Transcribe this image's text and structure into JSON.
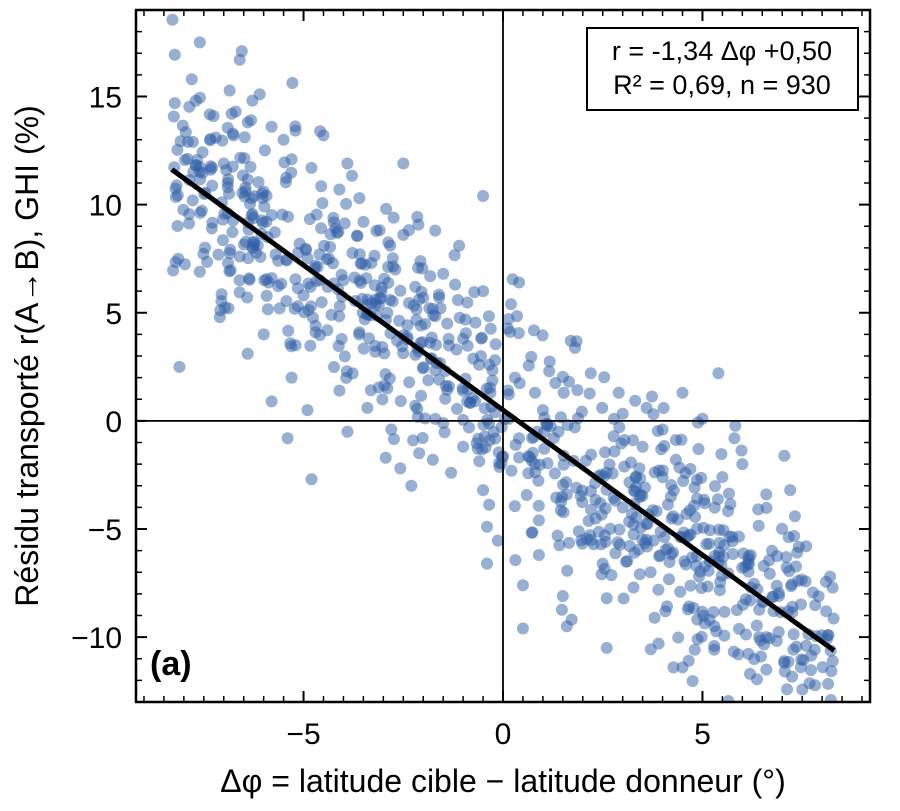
{
  "chart_data": {
    "type": "scatter",
    "panel_label": "(a)",
    "xlabel": "Δφ = latitude cible − latitude donneur (°)",
    "ylabel": "Résidu transporté r(A→B), GHI (%)",
    "xlim": [
      -9.2,
      9.2
    ],
    "ylim": [
      -13,
      19
    ],
    "xticks": [
      -5,
      0,
      5
    ],
    "xtick_labels": [
      "−5",
      "0",
      "5"
    ],
    "yticks": [
      -10,
      -5,
      0,
      5,
      10,
      15
    ],
    "ytick_labels": [
      "−10",
      "−5",
      "0",
      "5",
      "10",
      "15"
    ],
    "grid": false,
    "reference_lines": {
      "x": 0,
      "y": 0
    },
    "annotation": {
      "line1": "r = -1,34 Δφ +0,50",
      "line2": "R² = 0,69, n = 930",
      "placement": "top-right"
    },
    "fit": {
      "slope": -1.34,
      "intercept": 0.5,
      "x_range": [
        -8.3,
        8.3
      ]
    },
    "point_color": "#2f5fa8",
    "line_color": "#000000",
    "n": 930,
    "noise_sd": 2.55,
    "points_shown": [
      [
        -7.6,
        17.5
      ],
      [
        -6.6,
        16.7
      ],
      [
        -7.8,
        15.8
      ],
      [
        -6.1,
        15.1
      ],
      [
        -7.7,
        14.8
      ],
      [
        -6.8,
        14.2
      ],
      [
        -6.7,
        14.3
      ],
      [
        -6.4,
        13.8
      ],
      [
        -5.8,
        13.6
      ],
      [
        -4.5,
        13.2
      ],
      [
        -7.9,
        12.9
      ],
      [
        -7.2,
        13.1
      ],
      [
        -5.5,
        13.0
      ],
      [
        -5.3,
        12.1
      ],
      [
        -3.9,
        11.9
      ],
      [
        -2.5,
        11.9
      ],
      [
        -4.8,
        11.7
      ],
      [
        -7.0,
        11.9
      ],
      [
        -6.9,
        11.0
      ],
      [
        -6.0,
        10.6
      ],
      [
        -4.1,
        10.7
      ],
      [
        -3.6,
        10.3
      ],
      [
        -0.5,
        10.4
      ],
      [
        -7.3,
        8.9
      ],
      [
        -6.9,
        9.6
      ],
      [
        -6.3,
        9.5
      ],
      [
        -5.9,
        8.5
      ],
      [
        -5.1,
        8.2
      ],
      [
        -4.2,
        8.9
      ],
      [
        -3.5,
        9.2
      ],
      [
        -2.5,
        8.6
      ],
      [
        -1.7,
        8.8
      ],
      [
        -1.1,
        8.1
      ],
      [
        -6.6,
        7.6
      ],
      [
        -5.7,
        7.7
      ],
      [
        -4.6,
        7.7
      ],
      [
        -3.3,
        7.3
      ],
      [
        -2.7,
        7.0
      ],
      [
        -1.5,
        6.8
      ],
      [
        -7.6,
        6.9
      ],
      [
        -5.8,
        6.6
      ],
      [
        -4.0,
        6.5
      ],
      [
        -2.2,
        6.2
      ],
      [
        -1.2,
        6.3
      ],
      [
        -0.5,
        6.0
      ],
      [
        -6.6,
        6.5
      ],
      [
        -5.0,
        5.8
      ],
      [
        -3.2,
        5.6
      ],
      [
        -2.0,
        5.7
      ],
      [
        0.2,
        5.4
      ],
      [
        -5.6,
        5.2
      ],
      [
        -4.3,
        4.9
      ],
      [
        -2.9,
        5.0
      ],
      [
        -1.4,
        4.5
      ],
      [
        -7.1,
        4.8
      ],
      [
        -6.0,
        4.0
      ],
      [
        -4.7,
        4.1
      ],
      [
        -3.6,
        4.1
      ],
      [
        -2.4,
        3.9
      ],
      [
        -1.0,
        3.8
      ],
      [
        -6.4,
        3.1
      ],
      [
        -5.2,
        3.5
      ],
      [
        -3.2,
        3.2
      ],
      [
        -1.8,
        2.9
      ],
      [
        -0.6,
        2.6
      ],
      [
        -5.3,
        2.0
      ],
      [
        -4.1,
        1.4
      ],
      [
        -2.9,
        1.5
      ],
      [
        -1.6,
        1.9
      ],
      [
        0.3,
        2.0
      ],
      [
        -5.8,
        0.9
      ],
      [
        -4.9,
        0.5
      ],
      [
        -3.4,
        0.6
      ],
      [
        -2.2,
        0.7
      ],
      [
        -0.9,
        0.9
      ],
      [
        -3.9,
        -0.5
      ],
      [
        -2.8,
        -0.4
      ],
      [
        -1.5,
        -0.1
      ],
      [
        -0.2,
        0.4
      ],
      [
        1.0,
        0.5
      ],
      [
        -5.4,
        -0.8
      ],
      [
        -2.1,
        -1.5
      ],
      [
        -1.0,
        -1.2
      ],
      [
        0.4,
        -0.8
      ],
      [
        1.8,
        -0.3
      ],
      [
        -4.8,
        -2.7
      ],
      [
        -2.3,
        -3.0
      ],
      [
        -1.3,
        -2.4
      ],
      [
        -0.5,
        -3.2
      ],
      [
        0.8,
        -2.0
      ],
      [
        -0.4,
        -4.9
      ],
      [
        0.9,
        -4.6
      ],
      [
        1.6,
        -3.4
      ],
      [
        2.6,
        -2.4
      ],
      [
        3.5,
        -1.2
      ],
      [
        -0.4,
        -6.6
      ],
      [
        0.9,
        -6.2
      ],
      [
        1.9,
        -5.1
      ],
      [
        3.0,
        -4.0
      ],
      [
        4.0,
        -2.6
      ],
      [
        0.5,
        -7.6
      ],
      [
        1.5,
        -8.1
      ],
      [
        2.5,
        -6.6
      ],
      [
        3.6,
        -5.5
      ],
      [
        4.6,
        -4.3
      ],
      [
        0.5,
        -9.6
      ],
      [
        1.6,
        -9.5
      ],
      [
        2.6,
        -8.2
      ],
      [
        3.7,
        -7.0
      ],
      [
        5.1,
        -5.7
      ],
      [
        2.6,
        -10.5
      ],
      [
        3.8,
        -9.1
      ],
      [
        4.5,
        -11.4
      ],
      [
        5.3,
        -9.5
      ],
      [
        6.2,
        -8.3
      ],
      [
        3.9,
        -10.3
      ],
      [
        5.9,
        -10.8
      ],
      [
        6.6,
        -10.0
      ],
      [
        7.6,
        -10.4
      ],
      [
        8.1,
        -8.8
      ],
      [
        4.5,
        1.3
      ],
      [
        5.4,
        2.2
      ],
      [
        5.0,
        0.1
      ],
      [
        5.8,
        -0.8
      ],
      [
        6.0,
        -2.0
      ],
      [
        6.6,
        -3.4
      ],
      [
        7.2,
        -3.2
      ],
      [
        7.6,
        -5.8
      ],
      [
        8.2,
        -7.2
      ],
      [
        7.1,
        -6.3
      ],
      [
        7.4,
        -7.4
      ],
      [
        6.6,
        -11.5
      ],
      [
        0.4,
        6.4
      ],
      [
        1.7,
        3.7
      ],
      [
        2.2,
        2.2
      ],
      [
        2.9,
        1.3
      ],
      [
        3.6,
        0.6
      ],
      [
        4.0,
        -0.4
      ],
      [
        4.9,
        -1.3
      ],
      [
        5.5,
        -2.6
      ]
    ]
  }
}
